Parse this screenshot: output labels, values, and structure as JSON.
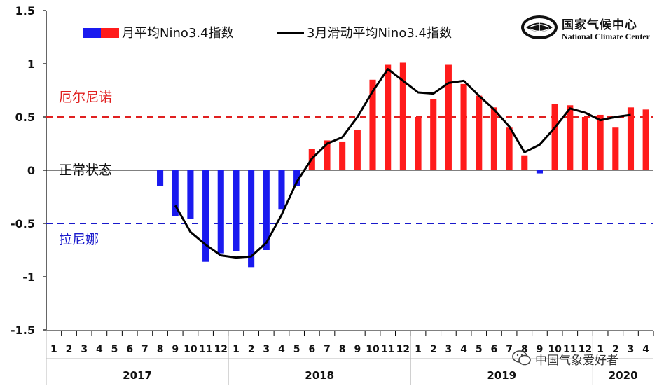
{
  "chart_data": {
    "type": "bar",
    "ylim": [
      -1.5,
      1.5
    ],
    "yticks": [
      "1.5",
      "1",
      "0.5",
      "0",
      "-0.5",
      "-1",
      "-1.5"
    ],
    "ytick_values": [
      1.5,
      1,
      0.5,
      0,
      -0.5,
      -1,
      -1.5
    ],
    "months": [
      "1",
      "2",
      "3",
      "4",
      "5",
      "6",
      "7",
      "8",
      "9",
      "10",
      "11",
      "12",
      "1",
      "2",
      "3",
      "4",
      "5",
      "6",
      "7",
      "8",
      "9",
      "10",
      "11",
      "12",
      "1",
      "2",
      "3",
      "4",
      "5",
      "6",
      "7",
      "8",
      "9",
      "10",
      "11",
      "12",
      "1",
      "2",
      "3",
      "4"
    ],
    "years": [
      {
        "label": "2017",
        "start": 0,
        "count": 12
      },
      {
        "label": "2018",
        "start": 12,
        "count": 12
      },
      {
        "label": "2019",
        "start": 24,
        "count": 12
      },
      {
        "label": "2020",
        "start": 36,
        "count": 4
      }
    ],
    "series": [
      {
        "name": "月平均Nino3.4指数",
        "values": [
          null,
          null,
          null,
          null,
          null,
          null,
          null,
          -0.15,
          -0.43,
          -0.46,
          -0.86,
          -0.78,
          -0.76,
          -0.91,
          -0.75,
          -0.37,
          -0.15,
          0.2,
          0.28,
          0.27,
          0.38,
          0.85,
          0.99,
          1.01,
          0.5,
          0.67,
          0.99,
          0.81,
          0.7,
          0.59,
          0.4,
          0.14,
          -0.03,
          0.62,
          0.61,
          0.5,
          0.52,
          0.4,
          0.59,
          0.57
        ],
        "colors": {
          "positive": "#ff1b1b",
          "negative": "#1a1aef"
        }
      },
      {
        "name": "3月滑动平均Nino3.4指数",
        "values": [
          null,
          null,
          null,
          null,
          null,
          null,
          null,
          null,
          -0.33,
          -0.58,
          -0.7,
          -0.8,
          -0.82,
          -0.81,
          -0.68,
          -0.42,
          -0.11,
          0.11,
          0.25,
          0.31,
          0.5,
          0.74,
          0.95,
          0.84,
          0.73,
          0.72,
          0.82,
          0.84,
          0.7,
          0.57,
          0.41,
          0.17,
          0.24,
          0.4,
          0.58,
          0.54,
          0.47,
          0.5,
          0.52,
          null
        ],
        "color": "#000000"
      }
    ],
    "reference_lines": [
      {
        "y": 0.5,
        "label": "厄尔尼诺",
        "color": "#e02020"
      },
      {
        "y": -0.5,
        "label": "拉尼娜",
        "color": "#1a1acc"
      }
    ],
    "zero_label": "正常状态",
    "grid": false,
    "legend": "top"
  },
  "logo": {
    "zh": "国家气候中心",
    "en": "National Climate Center"
  },
  "watermark": {
    "text": "中国气象爱好者",
    "icon": "wechat-icon"
  }
}
